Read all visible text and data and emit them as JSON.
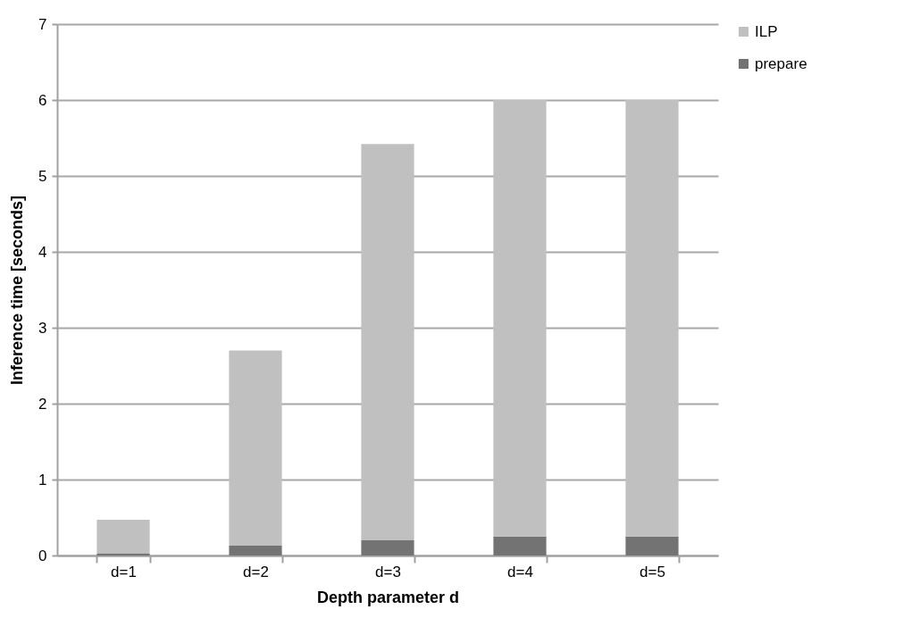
{
  "chart_data": {
    "type": "bar",
    "stacked": true,
    "categories": [
      "d=1",
      "d=2",
      "d=3",
      "d=4",
      "d=5"
    ],
    "series": [
      {
        "name": "prepare",
        "color": "#737373",
        "values": [
          0.03,
          0.13,
          0.2,
          0.25,
          0.25
        ]
      },
      {
        "name": "ILP",
        "color": "#c0c0c0",
        "values": [
          0.44,
          2.57,
          5.22,
          5.75,
          5.75
        ]
      }
    ],
    "xlabel": "Depth parameter d",
    "ylabel": "Inference time [seconds]",
    "ylim": [
      0,
      7
    ],
    "yticks": [
      0,
      1,
      2,
      3,
      4,
      5,
      6,
      7
    ],
    "grid": "y",
    "legend": "right"
  }
}
